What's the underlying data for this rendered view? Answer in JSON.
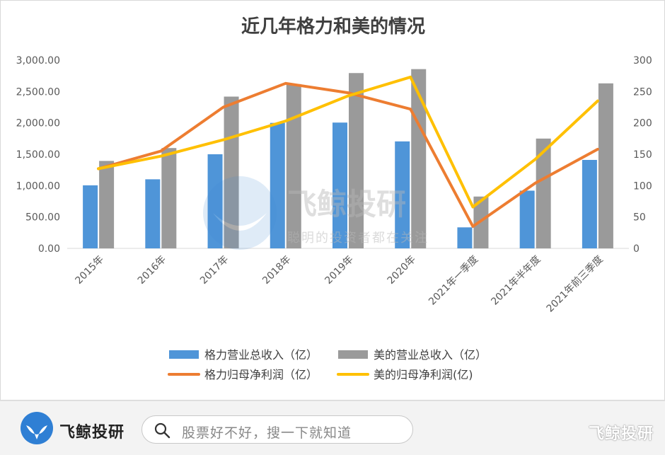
{
  "chart_data": {
    "type": "bar",
    "title": "近几年格力和美的情况",
    "categories": [
      "2015年",
      "2016年",
      "2017年",
      "2018年",
      "2019年",
      "2020年",
      "2021年一季度",
      "2021年半年度",
      "2021年前三季度"
    ],
    "y_left": {
      "ylim": [
        0,
        3000
      ],
      "ticks": [
        "0.00",
        "500.00",
        "1,000.00",
        "1,500.00",
        "2,000.00",
        "2,500.00",
        "3,000.00"
      ],
      "tick_values": [
        0,
        500,
        1000,
        1500,
        2000,
        2500,
        3000
      ]
    },
    "y_right": {
      "ylim": [
        0,
        300
      ],
      "ticks": [
        "0",
        "50",
        "100",
        "150",
        "200",
        "250",
        "300"
      ],
      "tick_values": [
        0,
        50,
        100,
        150,
        200,
        250,
        300
      ]
    },
    "series": [
      {
        "name": "格力营业总收入（亿）",
        "kind": "bar",
        "axis": "left",
        "color": "#4f95d8",
        "values": [
          1005,
          1101,
          1500,
          2000,
          2005,
          1705,
          335,
          920,
          1410
        ]
      },
      {
        "name": "美的营业总收入（亿）",
        "kind": "bar",
        "axis": "left",
        "color": "#9a9a9a",
        "values": [
          1394,
          1599,
          2419,
          2618,
          2794,
          2857,
          826,
          1750,
          2630
        ]
      },
      {
        "name": "格力归母净利润（亿）",
        "kind": "line",
        "axis": "right",
        "color": "#ed7d31",
        "values": [
          127,
          155,
          225,
          263,
          248,
          222,
          35,
          104,
          158
        ]
      },
      {
        "name": "美的归母净利润(亿)",
        "kind": "line",
        "axis": "right",
        "color": "#ffc000",
        "values": [
          127,
          147,
          173,
          203,
          243,
          273,
          66,
          142,
          235
        ]
      }
    ],
    "grid": false,
    "legend_position": "bottom"
  },
  "watermark": {
    "brand": "飞鲸投研",
    "slogan": "聪明的投资者都在关注"
  },
  "footer": {
    "brand_name": "飞鲸投研",
    "search_placeholder": "股票好不好，搜一下就知道",
    "brand_right": "飞鲸投研",
    "icons": {
      "logo": "whale-tail-logo",
      "search": "magnifier-icon"
    }
  }
}
